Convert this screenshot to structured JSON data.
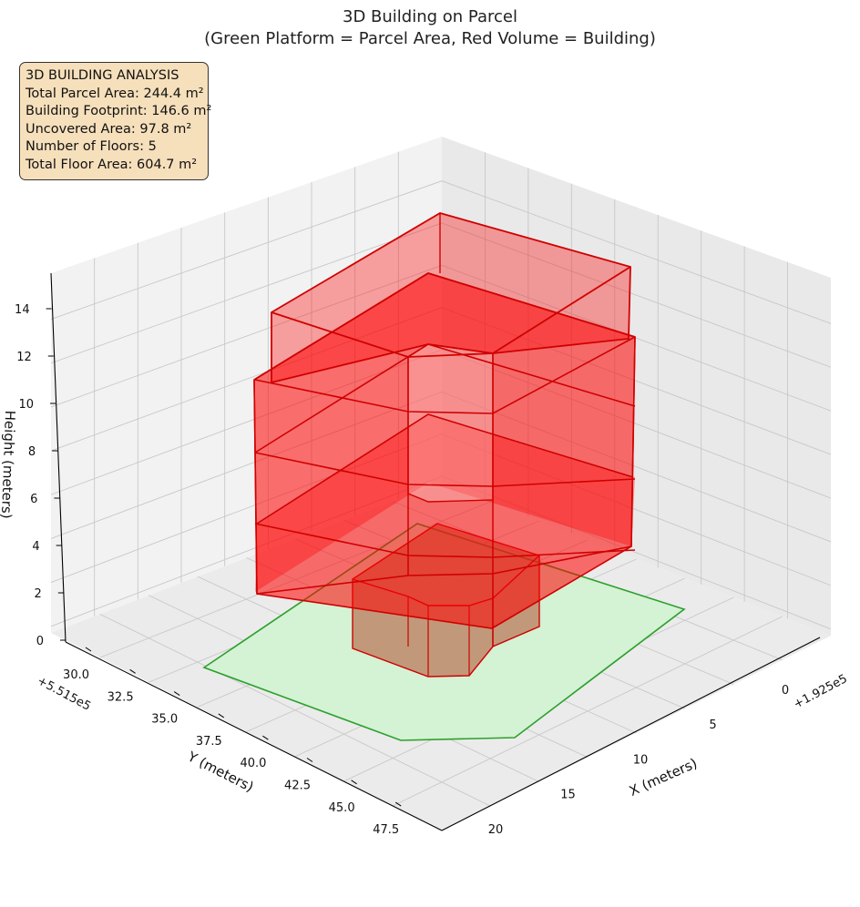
{
  "chart_data": {
    "type": "3d-polygons",
    "title": "3D Building on Parcel",
    "subtitle": "(Green Platform = Parcel Area, Red Volume = Building)",
    "xlabel": "X (meters)",
    "ylabel": "Y (meters)",
    "zlabel": "Height (meters)",
    "x_offset": "+1.925e5",
    "y_offset": "+5.515e5",
    "x_ticks": [
      "0",
      "5",
      "10",
      "15",
      "20"
    ],
    "y_ticks": [
      "30.0",
      "32.5",
      "35.0",
      "37.5",
      "40.0",
      "42.5",
      "45.0",
      "47.5"
    ],
    "z_ticks": [
      "0",
      "2",
      "4",
      "6",
      "8",
      "10",
      "12",
      "14"
    ],
    "colors": {
      "parcel_fill": "#d4f2d4",
      "parcel_edge": "#2ca02c",
      "building_fill": "#ff0000",
      "building_edge": "#d00000"
    },
    "floors": 5
  },
  "info_box": {
    "lines": [
      "3D BUILDING ANALYSIS",
      "Total Parcel Area: 244.4 m²",
      "Building Footprint: 146.6 m²",
      "Uncovered Area: 97.8 m²",
      "Number of Floors: 5",
      "Total Floor Area: 604.7 m²"
    ]
  }
}
